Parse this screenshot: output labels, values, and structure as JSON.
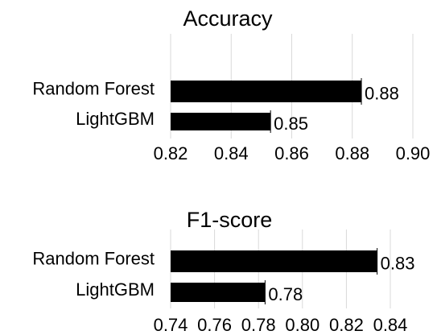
{
  "chart_data": [
    {
      "type": "bar",
      "orientation": "horizontal",
      "title": "Accuracy",
      "categories": [
        "Random Forest",
        "LightGBM"
      ],
      "values": [
        0.883,
        0.853
      ],
      "data_labels": [
        "0.88",
        "0.85"
      ],
      "xlim": [
        0.82,
        0.9
      ],
      "xticks": [
        "0.82",
        "0.84",
        "0.86",
        "0.88",
        "0.90"
      ],
      "grid": true,
      "color": "#000000"
    },
    {
      "type": "bar",
      "orientation": "horizontal",
      "title": "F1-score",
      "categories": [
        "Random Forest",
        "LightGBM"
      ],
      "values": [
        0.834,
        0.783
      ],
      "data_labels": [
        "0.83",
        "0.78"
      ],
      "xlim": [
        0.74,
        0.84
      ],
      "xticks": [
        "0.74",
        "0.76",
        "0.78",
        "0.80",
        "0.82",
        "0.84"
      ],
      "grid": true,
      "color": "#000000"
    }
  ]
}
